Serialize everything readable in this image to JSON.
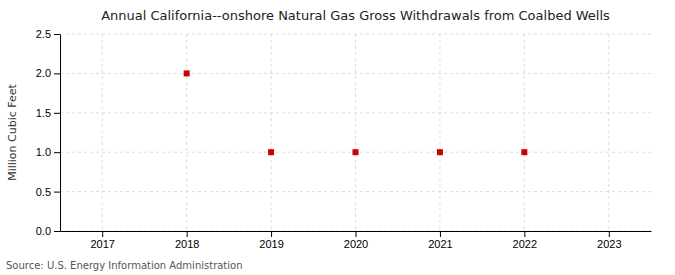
{
  "chart_data": {
    "type": "scatter",
    "title": "Annual California--onshore Natural Gas Gross Withdrawals from Coalbed Wells",
    "ylabel": "Million Cubic Feet",
    "source": "Source: U.S. Energy Information Administration",
    "x": [
      2018,
      2019,
      2020,
      2021,
      2022
    ],
    "values": [
      2.0,
      1.0,
      1.0,
      1.0,
      1.0
    ],
    "color": "#cc0000",
    "marker": "square",
    "xlim": [
      2016.5,
      2023.5
    ],
    "xticks": [
      2017,
      2018,
      2019,
      2020,
      2021,
      2022,
      2023
    ],
    "ylim": [
      0,
      2.5
    ],
    "yticks": [
      {
        "value": 0,
        "label": "0.0"
      },
      0.5,
      {
        "value": 1,
        "label": "1.0"
      },
      1.5,
      {
        "value": 2,
        "label": "2.0"
      },
      {
        "value": 2.5,
        "label": "2.5"
      }
    ],
    "grid": true
  }
}
